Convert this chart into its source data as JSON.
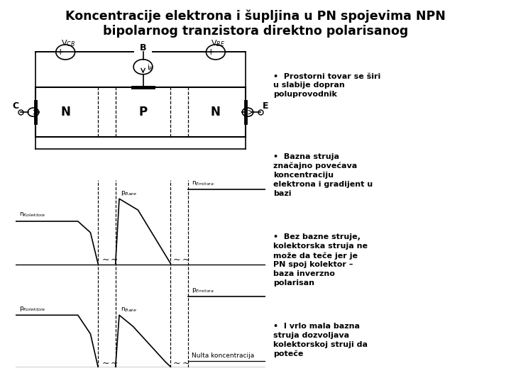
{
  "title_line1": "Koncentracije elektrona i šupljina u PN spojevima NPN",
  "title_line2": "bipolarnog tranzistora direktno polarisanog",
  "title_fontsize": 12.5,
  "bg_color": "#ffffff",
  "bullet_points": [
    "Prostorni tovar se širi\nu slabije dopran\npoluprovodnik",
    "Bazna struja\nznačajno povećava\nkoncentraciju\nelektrona i gradijent u\nbazi",
    "Bez bazne struje,\nkolektorska struja ne\nmože da teče jer je\nPN spoj kolektor –\nbaza inverzno\npolarisan",
    "I vrlo mala bazna\nstruja dozvoljava\nkolektorskoj struji da\npoteče"
  ],
  "bullet_fontsize": 8.0
}
